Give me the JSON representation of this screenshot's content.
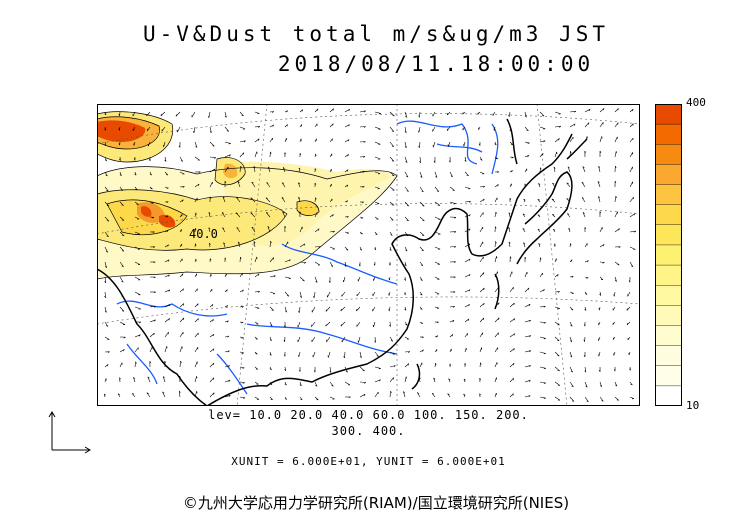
{
  "header": {
    "title_line1": "U-V&Dust total m/s&ug/m3 JST",
    "title_line2": "2018/08/11.18:00:00"
  },
  "colorbar": {
    "max_label": "400",
    "min_label": "10",
    "colors": [
      "#e84a00",
      "#f26a00",
      "#f78a10",
      "#faa830",
      "#fcc440",
      "#fdd84a",
      "#fde65a",
      "#fef070",
      "#fef488",
      "#fef8a0",
      "#fffab8",
      "#fffccf",
      "#fffde0",
      "#fffee8",
      "#ffffff"
    ]
  },
  "map": {
    "contour_label": "40.0",
    "dust_colors": {
      "high": "#e84a00",
      "mid": "#f9b23a",
      "low": "#fde87a",
      "faint": "#fff9c8"
    },
    "coast_color": "#000000",
    "river_color": "#1a5cff"
  },
  "footer": {
    "levels_line1": "lev= 10.0 20.0 40.0 60.0 100. 150. 200.",
    "levels_line2": "300. 400.",
    "unit_line": "XUNIT = 6.000E+01, YUNIT = 6.000E+01",
    "copyright": "©九州大学応用力学研究所(RIAM)/国立環境研究所(NIES)"
  }
}
